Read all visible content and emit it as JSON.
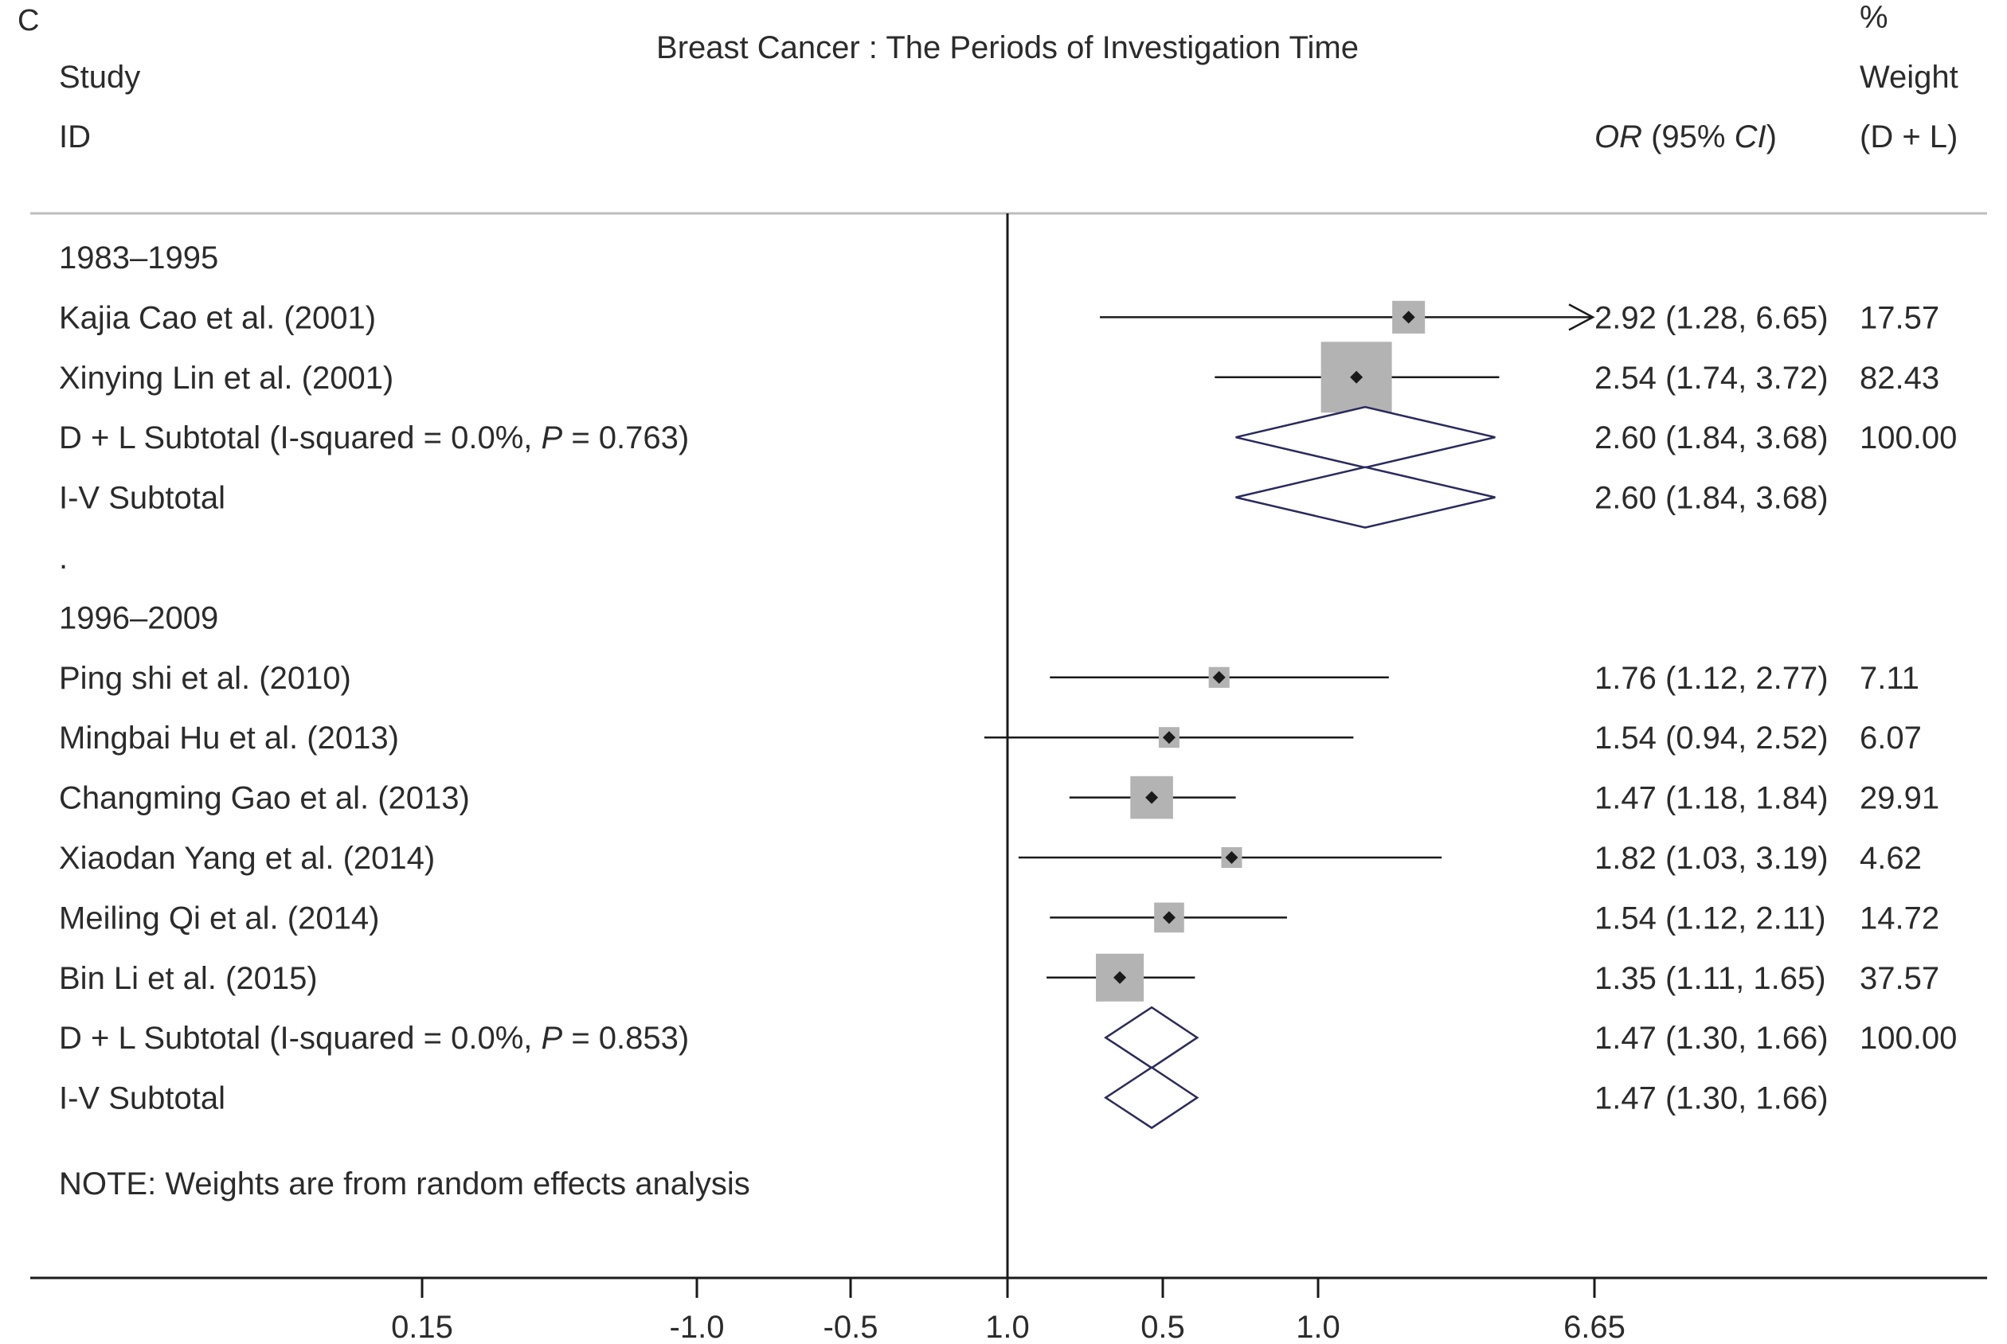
{
  "panel_label": "C",
  "header": {
    "col_study_line1": "Study",
    "col_study_line2": "ID",
    "col_or": "OR (95% CI)",
    "col_or_italic_a": "OR",
    "col_or_mid": " (95% ",
    "col_or_italic_b": "CI",
    "col_or_end": ")",
    "col_weight_line1": "%",
    "col_weight_line2": "Weight",
    "col_weight_line3": "(D + L)"
  },
  "note": "NOTE: Weights are from random effects analysis",
  "chart_data": {
    "type": "forest",
    "title": "Breast Cancer : The Periods of Investigation Time",
    "xlabel": "",
    "ylabel": "",
    "x_ticks": [
      "0.15",
      "-1.0",
      "-0.5",
      "1.0",
      "0.5",
      "1.0",
      "6.65"
    ],
    "null_line": 1.0,
    "groups": [
      {
        "label": "1983–1995",
        "studies": [
          {
            "study": "Kajia Cao et al. (2001)",
            "or": 2.92,
            "lo": 1.28,
            "hi": 6.65,
            "ci_text": "2.92 (1.28, 6.65)",
            "weight": "17.57",
            "arrow_right": true
          },
          {
            "study": "Xinying Lin et al. (2001)",
            "or": 2.54,
            "lo": 1.74,
            "hi": 3.72,
            "ci_text": "2.54 (1.74, 3.72)",
            "weight": "82.43"
          }
        ],
        "subtotals": [
          {
            "label_a": "D + L Subtotal  (I-squared = 0.0%, ",
            "label_p": "P",
            "label_b": " = 0.763)",
            "or": 2.6,
            "lo": 1.84,
            "hi": 3.68,
            "ci_text": "2.60 (1.84, 3.68)",
            "weight": "100.00"
          },
          {
            "label_a": "I-V Subtotal",
            "label_p": "",
            "label_b": "",
            "or": 2.6,
            "lo": 1.84,
            "hi": 3.68,
            "ci_text": "2.60 (1.84, 3.68)",
            "weight": ""
          }
        ]
      },
      {
        "label": "1996–2009",
        "studies": [
          {
            "study": "Ping shi et al. (2010)",
            "or": 1.76,
            "lo": 1.12,
            "hi": 2.77,
            "ci_text": "1.76 (1.12, 2.77)",
            "weight": "7.11"
          },
          {
            "study": "Mingbai Hu et al. (2013)",
            "or": 1.54,
            "lo": 0.94,
            "hi": 2.52,
            "ci_text": "1.54 (0.94, 2.52)",
            "weight": "6.07"
          },
          {
            "study": "Changming Gao et al. (2013)",
            "or": 1.47,
            "lo": 1.18,
            "hi": 1.84,
            "ci_text": "1.47 (1.18, 1.84)",
            "weight": "29.91"
          },
          {
            "study": "Xiaodan Yang et al. (2014)",
            "or": 1.82,
            "lo": 1.03,
            "hi": 3.19,
            "ci_text": "1.82 (1.03, 3.19)",
            "weight": "4.62"
          },
          {
            "study": "Meiling Qi et al. (2014)",
            "or": 1.54,
            "lo": 1.12,
            "hi": 2.11,
            "ci_text": "1.54 (1.12, 2.11)",
            "weight": "14.72"
          },
          {
            "study": "Bin Li et al. (2015)",
            "or": 1.35,
            "lo": 1.11,
            "hi": 1.65,
            "ci_text": "1.35 (1.11, 1.65)",
            "weight": "37.57"
          }
        ],
        "subtotals": [
          {
            "label_a": "D + L Subtotal  (I-squared = 0.0%, ",
            "label_p": "P",
            "label_b": " = 0.853)",
            "or": 1.47,
            "lo": 1.3,
            "hi": 1.66,
            "ci_text": "1.47 (1.30, 1.66)",
            "weight": "100.00"
          },
          {
            "label_a": "I-V Subtotal",
            "label_p": "",
            "label_b": "",
            "or": 1.47,
            "lo": 1.3,
            "hi": 1.66,
            "ci_text": "1.47 (1.30, 1.66)",
            "weight": ""
          }
        ]
      }
    ],
    "separator_dot": ".",
    "colors": {
      "box": "#b3b3b3",
      "diamond_stroke": "#2a2a5e",
      "line": "#1a1a1a",
      "axis": "#1a1a1a",
      "rule": "#bdbdbd"
    }
  }
}
